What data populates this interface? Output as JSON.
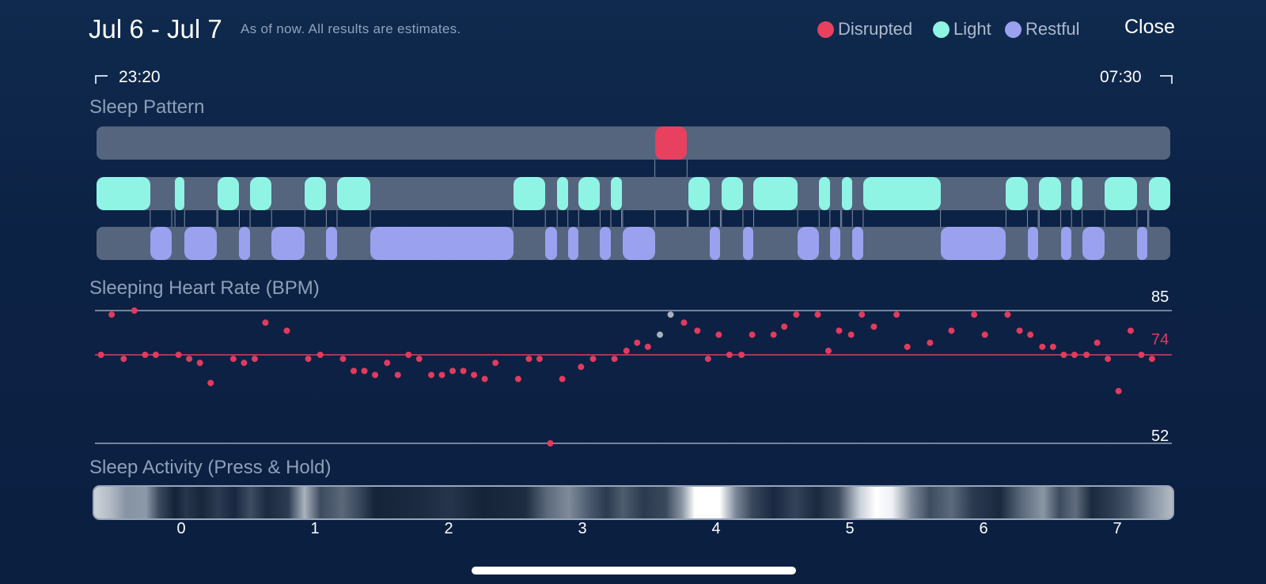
{
  "header": {
    "date_range": "Jul 6 - Jul 7",
    "subtitle": "As of now. All results are estimates.",
    "close_label": "Close"
  },
  "legend": [
    {
      "label": "Disrupted",
      "color": "#e8405f"
    },
    {
      "label": "Light",
      "color": "#8ff4e4"
    },
    {
      "label": "Restful",
      "color": "#9aa1ee"
    }
  ],
  "time_range": {
    "start": "23:20",
    "end": "07:30"
  },
  "sleep_pattern": {
    "title": "Sleep Pattern",
    "colors": {
      "disrupted": "#e8405f",
      "light": "#8ff4e4",
      "restful": "#9aa1ee",
      "track": "#55657e"
    },
    "disrupted": [
      [
        0.52,
        0.55
      ]
    ],
    "light": [
      [
        0.0,
        0.05
      ],
      [
        0.073,
        0.082
      ],
      [
        0.113,
        0.133
      ],
      [
        0.143,
        0.163
      ],
      [
        0.194,
        0.214
      ],
      [
        0.224,
        0.255
      ],
      [
        0.388,
        0.418
      ],
      [
        0.429,
        0.439
      ],
      [
        0.449,
        0.469
      ],
      [
        0.479,
        0.489
      ],
      [
        0.551,
        0.571
      ],
      [
        0.582,
        0.602
      ],
      [
        0.612,
        0.653
      ],
      [
        0.673,
        0.683
      ],
      [
        0.694,
        0.704
      ],
      [
        0.714,
        0.786
      ],
      [
        0.847,
        0.867
      ],
      [
        0.878,
        0.898
      ],
      [
        0.908,
        0.918
      ],
      [
        0.939,
        0.969
      ],
      [
        0.98,
        1.0
      ]
    ],
    "restful": [
      [
        0.05,
        0.07
      ],
      [
        0.082,
        0.112
      ],
      [
        0.133,
        0.143
      ],
      [
        0.163,
        0.194
      ],
      [
        0.214,
        0.224
      ],
      [
        0.255,
        0.388
      ],
      [
        0.418,
        0.429
      ],
      [
        0.439,
        0.449
      ],
      [
        0.469,
        0.479
      ],
      [
        0.49,
        0.52
      ],
      [
        0.571,
        0.581
      ],
      [
        0.602,
        0.612
      ],
      [
        0.653,
        0.673
      ],
      [
        0.683,
        0.693
      ],
      [
        0.704,
        0.714
      ],
      [
        0.786,
        0.847
      ],
      [
        0.867,
        0.877
      ],
      [
        0.898,
        0.908
      ],
      [
        0.918,
        0.939
      ],
      [
        0.969,
        0.979
      ]
    ]
  },
  "heart_rate": {
    "title": "Sleeping Heart Rate (BPM)",
    "max": 85,
    "avg": 74,
    "min": 52,
    "colors": {
      "point": "#e23b5e",
      "avg_line": "#e23b5e",
      "grid": "#9aa6b8",
      "flagged": "#a9b1bc"
    },
    "points": [
      [
        -0.6,
        74
      ],
      [
        -0.52,
        84
      ],
      [
        -0.43,
        73
      ],
      [
        -0.35,
        85
      ],
      [
        -0.27,
        74
      ],
      [
        -0.19,
        74
      ],
      [
        -0.02,
        74
      ],
      [
        0.06,
        73
      ],
      [
        0.14,
        72
      ],
      [
        0.22,
        67
      ],
      [
        0.39,
        73
      ],
      [
        0.47,
        72
      ],
      [
        0.55,
        73
      ],
      [
        0.63,
        82
      ],
      [
        0.79,
        80
      ],
      [
        0.95,
        73
      ],
      [
        1.04,
        74
      ],
      [
        1.21,
        73
      ],
      [
        1.29,
        70
      ],
      [
        1.37,
        70
      ],
      [
        1.45,
        69
      ],
      [
        1.54,
        72
      ],
      [
        1.62,
        69
      ],
      [
        1.7,
        74
      ],
      [
        1.78,
        73
      ],
      [
        1.87,
        69
      ],
      [
        1.95,
        69
      ],
      [
        2.03,
        70
      ],
      [
        2.11,
        70
      ],
      [
        2.19,
        69
      ],
      [
        2.27,
        68
      ],
      [
        2.35,
        72
      ],
      [
        2.52,
        68
      ],
      [
        2.6,
        73
      ],
      [
        2.68,
        73
      ],
      [
        2.76,
        52
      ],
      [
        2.85,
        68
      ],
      [
        2.99,
        71
      ],
      [
        3.08,
        73
      ],
      [
        3.24,
        73
      ],
      [
        3.33,
        75
      ],
      [
        3.41,
        77
      ],
      [
        3.49,
        76
      ],
      [
        3.58,
        79
      ],
      [
        3.66,
        84
      ],
      [
        3.76,
        82
      ],
      [
        3.86,
        80
      ],
      [
        3.94,
        73
      ],
      [
        4.02,
        79
      ],
      [
        4.1,
        74
      ],
      [
        4.19,
        74
      ],
      [
        4.27,
        79
      ],
      [
        4.43,
        79
      ],
      [
        4.51,
        81
      ],
      [
        4.6,
        84
      ],
      [
        4.76,
        84
      ],
      [
        4.84,
        75
      ],
      [
        4.92,
        80
      ],
      [
        5.01,
        79
      ],
      [
        5.09,
        84
      ],
      [
        5.18,
        81
      ],
      [
        5.35,
        84
      ],
      [
        5.43,
        76
      ],
      [
        5.6,
        77
      ],
      [
        5.76,
        80
      ],
      [
        5.93,
        84
      ],
      [
        6.01,
        79
      ],
      [
        6.18,
        84
      ],
      [
        6.27,
        80
      ],
      [
        6.35,
        79
      ],
      [
        6.44,
        76
      ],
      [
        6.52,
        76
      ],
      [
        6.6,
        74
      ],
      [
        6.68,
        74
      ],
      [
        6.77,
        74
      ],
      [
        6.85,
        77
      ],
      [
        6.93,
        73
      ],
      [
        7.01,
        65
      ],
      [
        7.1,
        80
      ],
      [
        7.18,
        74
      ],
      [
        7.26,
        73
      ]
    ],
    "flagged_points": [
      [
        3.58,
        79
      ],
      [
        3.66,
        84
      ]
    ]
  },
  "sleep_activity": {
    "title": "Sleep Activity (Press & Hold)",
    "x_ticks": [
      "0",
      "1",
      "2",
      "3",
      "4",
      "5",
      "6",
      "7"
    ]
  }
}
